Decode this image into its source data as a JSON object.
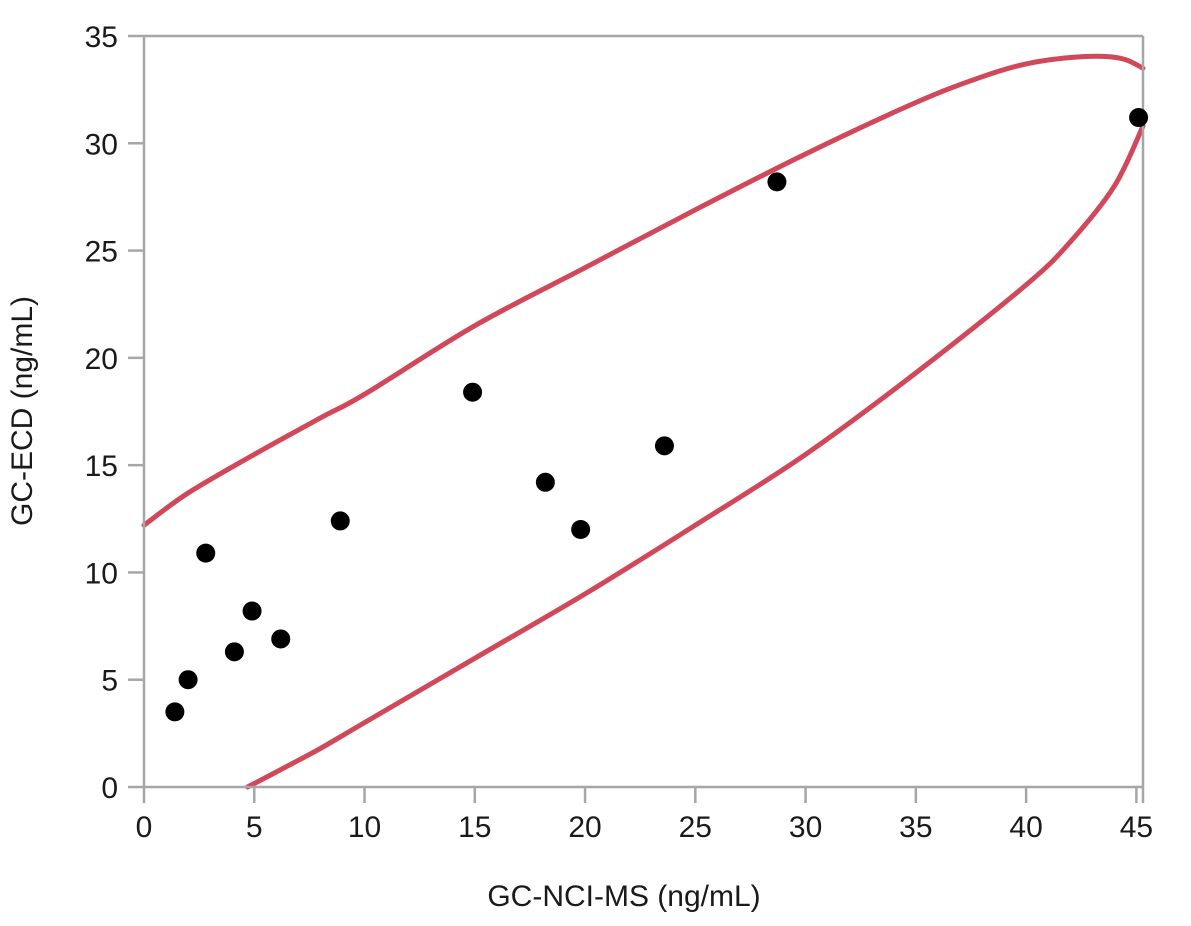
{
  "chart_data": {
    "type": "scatter",
    "xlabel": "GC-NCI-MS (ng/mL)",
    "ylabel": "GC-ECD (ng/mL)",
    "xlim": [
      0,
      45.3
    ],
    "ylim": [
      0,
      35
    ],
    "xticks": [
      0,
      5,
      10,
      15,
      20,
      25,
      30,
      35,
      40,
      45
    ],
    "yticks": [
      0,
      5,
      10,
      15,
      20,
      25,
      30,
      35
    ],
    "grid": false,
    "legend": "none",
    "series": [
      {
        "x": [
          1.4,
          2.0,
          2.8,
          4.1,
          4.9,
          6.2,
          8.9,
          14.9,
          18.2,
          19.8,
          23.6,
          28.7,
          45.1
        ],
        "y": [
          3.5,
          5.0,
          10.9,
          6.3,
          8.2,
          6.9,
          12.4,
          18.4,
          14.2,
          12.0,
          15.9,
          28.2,
          31.2
        ],
        "color": "#000000"
      }
    ],
    "confidence_ellipse": {
      "color": "#d0485a",
      "upper": {
        "x": [
          0,
          2,
          5,
          8,
          10,
          15,
          20,
          25,
          30,
          35,
          38,
          40,
          42,
          43.5,
          44.5,
          45.3
        ],
        "y": [
          12.2,
          13.7,
          15.5,
          17.2,
          18.3,
          21.5,
          24.2,
          26.9,
          29.5,
          31.9,
          33.1,
          33.7,
          34.0,
          34.05,
          33.9,
          33.5
        ]
      },
      "lower": {
        "x": [
          4.7,
          6,
          8,
          10,
          15,
          20,
          25,
          30,
          35,
          40,
          42,
          44,
          45.3
        ],
        "y": [
          0,
          0.7,
          1.8,
          3.0,
          6.0,
          9.0,
          12.2,
          15.5,
          19.3,
          23.4,
          25.4,
          28.0,
          30.8
        ]
      }
    }
  }
}
